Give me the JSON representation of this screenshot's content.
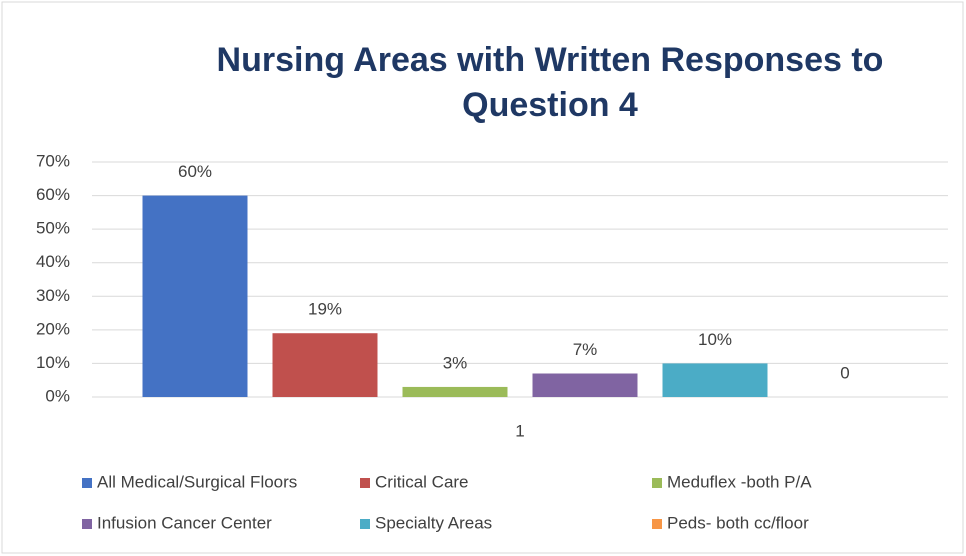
{
  "chart_data": {
    "type": "bar",
    "title": "Nursing Areas with Written Responses to Question 4",
    "categories": [
      "1"
    ],
    "series": [
      {
        "name": "All Medical/Surgical Floors",
        "color": "#4472c4",
        "values": [
          60
        ],
        "value_labels": [
          "60%"
        ]
      },
      {
        "name": "Critical Care",
        "color": "#c0504d",
        "values": [
          19
        ],
        "value_labels": [
          "19%"
        ]
      },
      {
        "name": "Meduflex -both P/A",
        "color": "#9bbb59",
        "values": [
          3
        ],
        "value_labels": [
          "3%"
        ]
      },
      {
        "name": "Infusion Cancer Center",
        "color": "#8064a2",
        "values": [
          7
        ],
        "value_labels": [
          "7%"
        ]
      },
      {
        "name": "Specialty Areas",
        "color": "#4bacc6",
        "values": [
          10
        ],
        "value_labels": [
          "10%"
        ]
      },
      {
        "name": "Peds- both cc/floor",
        "color": "#f79646",
        "values": [
          0
        ]
      }
    ],
    "ylim": [
      0,
      70
    ],
    "yticks": [
      {
        "value": 0,
        "label": "0%"
      },
      {
        "value": 10,
        "label": "10%"
      },
      {
        "value": 20,
        "label": "20%"
      },
      {
        "value": 30,
        "label": "30%"
      },
      {
        "value": 40,
        "label": "40%"
      },
      {
        "value": 50,
        "label": "50%"
      },
      {
        "value": 60,
        "label": "60%"
      },
      {
        "value": 70,
        "label": "70%"
      }
    ],
    "grid": true,
    "legend": "bottom"
  }
}
